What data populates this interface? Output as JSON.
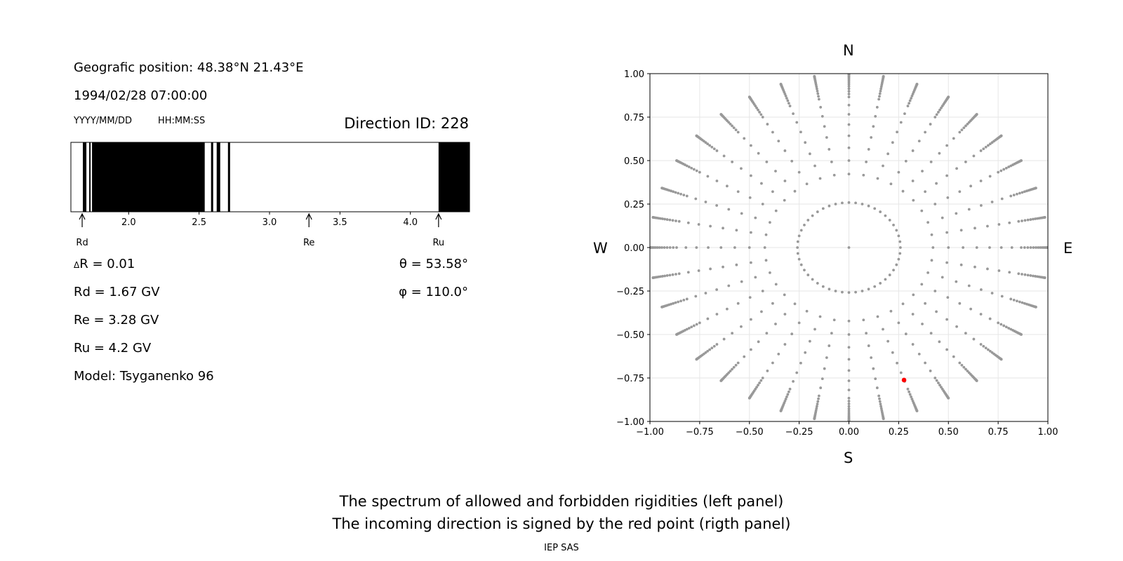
{
  "header": {
    "position": "Geografic position: 48.38°N 21.43°E",
    "datetime": "1994/02/28 07:00:00",
    "date_format": "YYYY/MM/DD",
    "time_format": "HH:MM:SS",
    "direction_id": "Direction ID: 228"
  },
  "readouts": {
    "delta_r": "R = 0.01",
    "delta_symbol": "Δ",
    "rd": "Rd = 1.67 GV",
    "re": "Re = 3.28 GV",
    "ru": "Ru = 4.2 GV",
    "model": "Model: Tsyganenko 96",
    "theta": "θ = 53.58°",
    "phi": "φ = 110.0°"
  },
  "caption": {
    "line1": "The spectrum of allowed and forbidden rigidities (left panel)",
    "line2": "The incoming direction is signed by the red point (rigth panel)",
    "credit": "IEP SAS"
  },
  "chart_data": [
    {
      "type": "spectrum-bar",
      "xlim": [
        1.59,
        4.42
      ],
      "ticks": [
        2.0,
        2.5,
        3.0,
        3.5,
        4.0
      ],
      "tick_labels": [
        "2.0",
        "2.5",
        "3.0",
        "3.5",
        "4.0"
      ],
      "forbidden_bands": [
        [
          1.675,
          1.7
        ],
        [
          1.72,
          1.73
        ],
        [
          1.74,
          2.54
        ],
        [
          2.585,
          2.6
        ],
        [
          2.625,
          2.65
        ],
        [
          2.705,
          2.72
        ],
        [
          4.2,
          4.42
        ]
      ],
      "markers": [
        {
          "label": "Rd",
          "value": 1.67
        },
        {
          "label": "Re",
          "value": 3.28
        },
        {
          "label": "Ru",
          "value": 4.2
        }
      ],
      "colors": {
        "forbidden": "#000000",
        "allowed": "#ffffff"
      }
    },
    {
      "type": "scatter",
      "xlim": [
        -1.0,
        1.0
      ],
      "ylim": [
        -1.0,
        1.0
      ],
      "ticks": [
        -1.0,
        -0.75,
        -0.5,
        -0.25,
        0.0,
        0.25,
        0.5,
        0.75,
        1.0
      ],
      "tick_labels": [
        "−1.00",
        "−0.75",
        "−0.50",
        "−0.25",
        "0.00",
        "0.25",
        "0.50",
        "0.75",
        "1.00"
      ],
      "grid": true,
      "compass": {
        "north": "N",
        "south": "S",
        "west": "W",
        "east": "E"
      },
      "series": [
        {
          "kind": "grid-directions",
          "color": "#999999",
          "rings_theta_deg": [
            0,
            15,
            25,
            30,
            35,
            40,
            45,
            50,
            55,
            60,
            62,
            64,
            66,
            68,
            70,
            72,
            74,
            76,
            78,
            80,
            82,
            84,
            86,
            88,
            90
          ],
          "azimuths_deg": [
            0,
            10,
            20,
            30,
            40,
            50,
            60,
            70,
            80,
            90,
            100,
            110,
            120,
            130,
            140,
            150,
            160,
            170,
            180,
            190,
            200,
            210,
            220,
            230,
            240,
            250,
            260,
            270,
            280,
            290,
            300,
            310,
            320,
            330,
            340,
            350
          ],
          "inner_ring_theta_deg": 15,
          "inner_ring_points": 48
        },
        {
          "kind": "incoming-direction",
          "color": "#ff0000",
          "x": 0.277,
          "y": -0.762
        }
      ]
    }
  ]
}
